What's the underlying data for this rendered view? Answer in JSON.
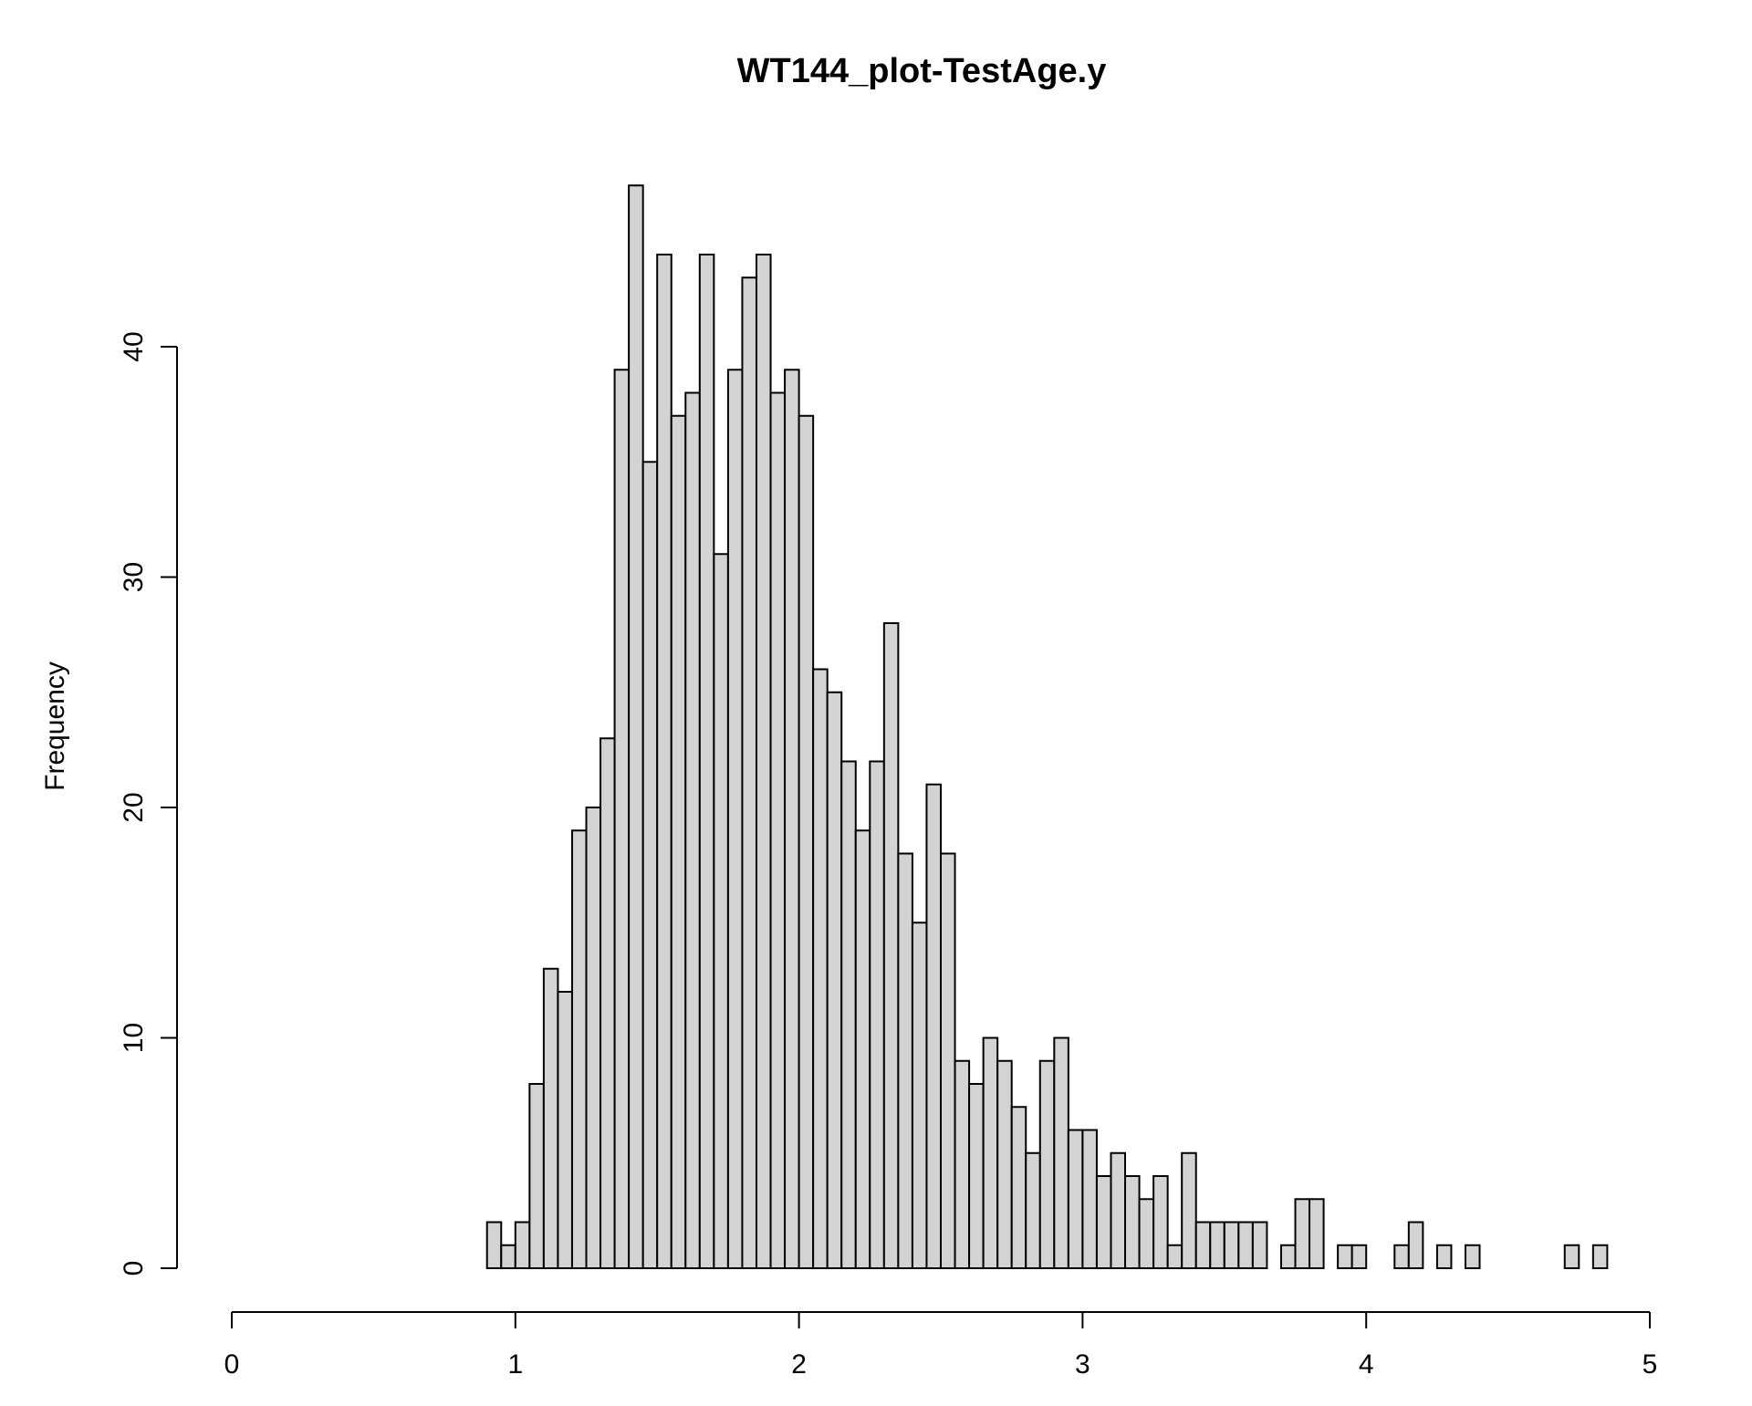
{
  "chart_data": {
    "type": "bar",
    "title": "WT144_plot-TestAge.y",
    "xlabel": "",
    "ylabel": "Frequency",
    "xlim": [
      0,
      5
    ],
    "ylim": [
      0,
      47
    ],
    "grid": false,
    "x_ticks": [
      "0",
      "1",
      "2",
      "3",
      "4",
      "5"
    ],
    "y_ticks": [
      "0",
      "10",
      "20",
      "30",
      "40"
    ],
    "bin_start": 0.9,
    "bin_width": 0.05,
    "values": [
      2,
      1,
      2,
      8,
      13,
      12,
      19,
      20,
      23,
      39,
      47,
      35,
      44,
      37,
      38,
      44,
      31,
      39,
      43,
      44,
      38,
      39,
      37,
      26,
      25,
      22,
      19,
      22,
      28,
      18,
      15,
      21,
      18,
      9,
      8,
      10,
      9,
      7,
      5,
      9,
      10,
      6,
      6,
      4,
      5,
      4,
      3,
      4,
      1,
      5,
      2,
      2,
      2,
      2,
      2,
      0,
      1,
      3,
      3,
      0,
      1,
      1,
      0,
      0,
      1,
      2,
      0,
      1,
      0,
      1,
      0,
      0,
      0,
      0,
      0,
      0,
      1,
      0,
      1
    ]
  }
}
